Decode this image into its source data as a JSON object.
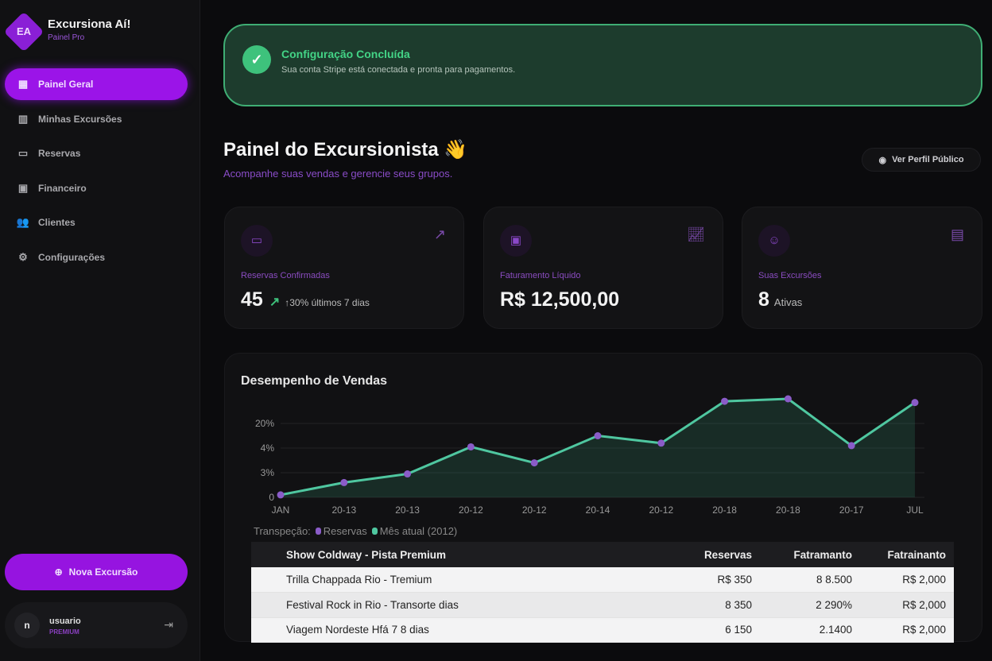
{
  "brand": {
    "logo": "EA",
    "name": "Excursiona Aí!",
    "sub": "Painel Pro"
  },
  "nav": [
    {
      "label": "Painel Geral",
      "icon": "grid-icon"
    },
    {
      "label": "Minhas Excursões",
      "icon": "map-icon"
    },
    {
      "label": "Reservas",
      "icon": "ticket-icon"
    },
    {
      "label": "Financeiro",
      "icon": "wallet-icon"
    },
    {
      "label": "Clientes",
      "icon": "users-icon"
    },
    {
      "label": "Configurações",
      "icon": "gear-icon"
    }
  ],
  "new_button": "Nova Excursão",
  "user": {
    "initial": "n",
    "name": "usuario",
    "role": "PREMIUM"
  },
  "banner": {
    "title": "Configuração Concluída",
    "text": "Sua conta Stripe está conectada e pronta para pagamentos."
  },
  "header": {
    "title": "Painel do Excursionista 👋",
    "subtitle": "Acompanhe suas vendas e gerencie seus grupos.",
    "public_button": "Ver Perfil Público"
  },
  "cards": [
    {
      "label": "Reservas Confirmadas",
      "value": "45",
      "extra": "↑30% últimos 7 dias"
    },
    {
      "label": "Faturamento Líquido",
      "value": "R$ 12,500,00",
      "extra": ""
    },
    {
      "label": "Suas Excursões",
      "value": "8",
      "extra": "Ativas"
    }
  ],
  "colors": {
    "accent": "#9b14e8",
    "success": "#3ec27c",
    "line": "#4fc7a0",
    "point": "#8a5cc8"
  },
  "chart_data": {
    "type": "area",
    "title": "Desempenho de Vendas",
    "categories": [
      "JAN",
      "20-13",
      "20-13",
      "20-12",
      "20-12",
      "20-14",
      "20-12",
      "20-18",
      "20-18",
      "20-17",
      "JUL"
    ],
    "y_tick_labels": [
      "0",
      "3%",
      "4%",
      "20%"
    ],
    "values": [
      0.1,
      0.6,
      0.95,
      2.05,
      1.4,
      2.5,
      2.2,
      3.9,
      4.0,
      2.1,
      3.85
    ],
    "legend_prefix": "Transpeção:",
    "series": [
      {
        "name": "Reservas"
      },
      {
        "name": "Mês atual (2012)"
      }
    ],
    "grid": true
  },
  "table": {
    "headers": [
      "Show Coldway - Pista Premium",
      "Reservas",
      "Fatramanto",
      "Fatrainanto"
    ],
    "rows": [
      [
        "Trilla Chappada Rio - Tremium",
        "R$ 350",
        "8 8.500",
        "R$ 2,000"
      ],
      [
        "Festival Rock in Rio - Transorte dias",
        "8 350",
        "2 290%",
        "R$ 2,000"
      ],
      [
        "Viagem Nordeste Hfá 7 8 dias",
        "6 150",
        "2.1400",
        "R$ 2,000"
      ]
    ]
  }
}
